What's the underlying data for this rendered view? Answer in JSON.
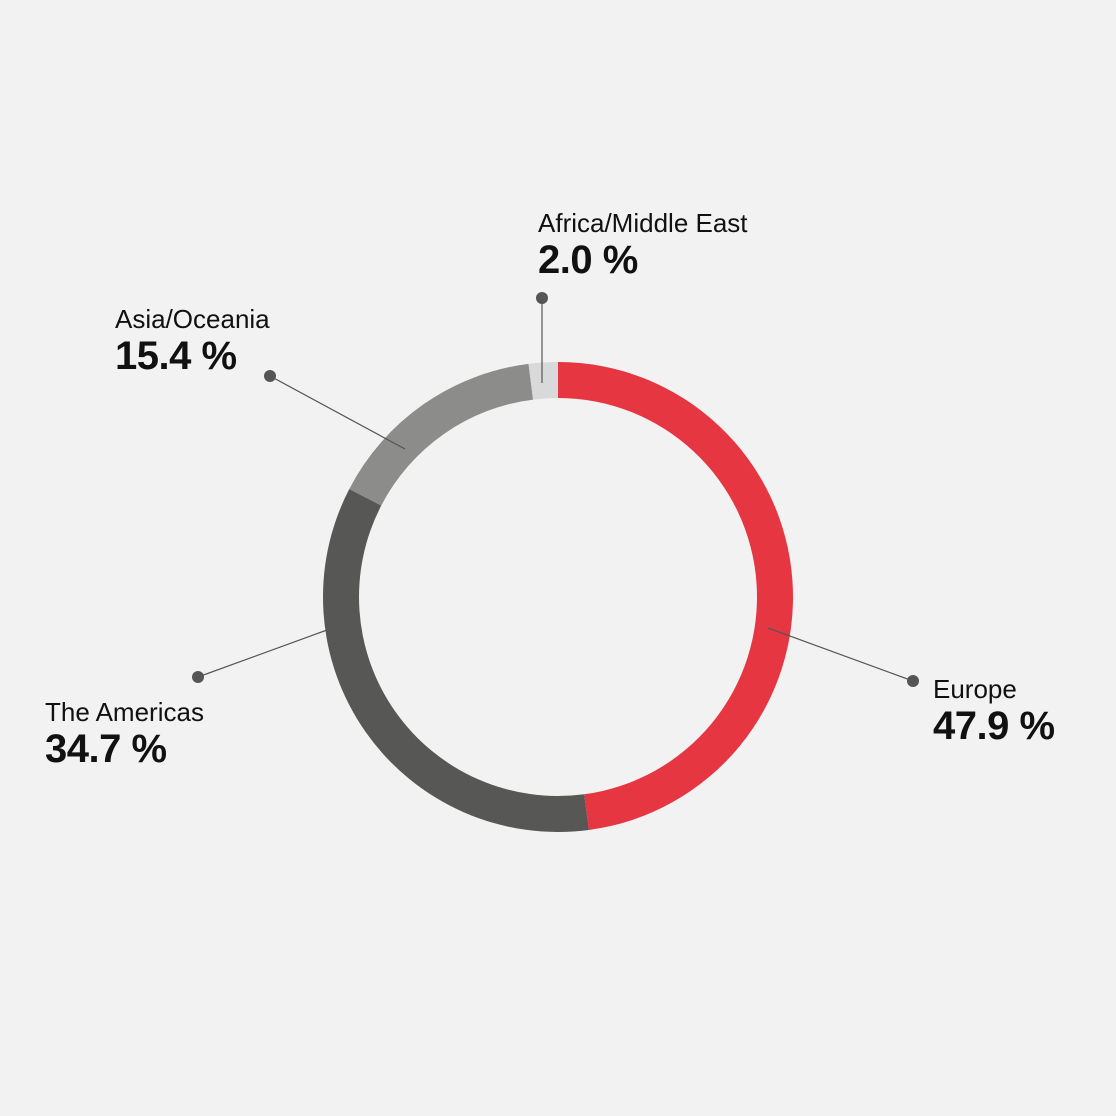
{
  "chart_data": {
    "type": "pie",
    "variant": "donut",
    "slices": [
      {
        "label": "Europe",
        "value": 47.9,
        "value_label": "47.9 %",
        "color": "#e63641"
      },
      {
        "label": "The Americas",
        "value": 34.7,
        "value_label": "34.7 %",
        "color": "#575755"
      },
      {
        "label": "Asia/Oceania",
        "value": 15.4,
        "value_label": "15.4 %",
        "color": "#8c8c8b"
      },
      {
        "label": "Africa/Middle East",
        "value": 2.0,
        "value_label": "2.0 %",
        "color": "#d9d9d9"
      }
    ],
    "start": "top",
    "direction": "clockwise",
    "legend": "callout labels with leader lines"
  },
  "colors": {
    "background": "#f2f2f2",
    "leader_line": "#555555",
    "text": "#111111"
  }
}
